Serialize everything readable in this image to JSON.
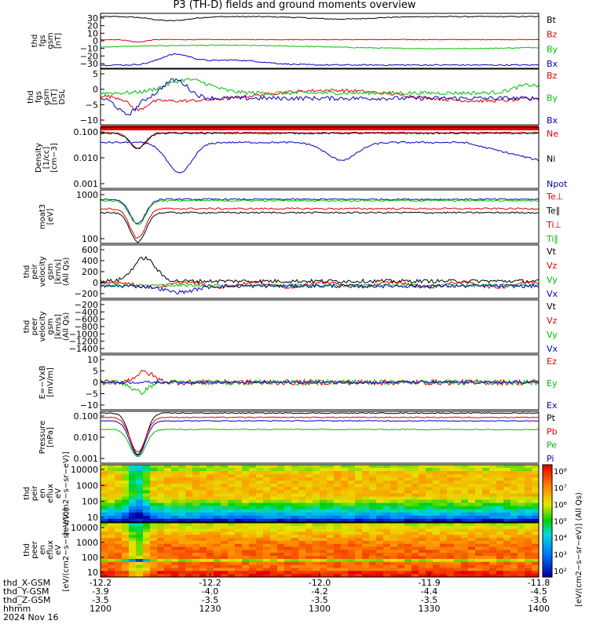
{
  "chart_data": {
    "type": "line",
    "title": "P3 (TH-D) fields and ground moments overview",
    "time_axis": {
      "labels": [
        "-12.2",
        "-12.2",
        "-12.0",
        "-11.9",
        "-11.8"
      ],
      "rows": [
        {
          "name": "thd_X-GSM",
          "values": [
            "-12.2",
            "-12.2",
            "-12.0",
            "-11.9",
            "-11.8"
          ]
        },
        {
          "name": "thd_Y-GSM",
          "values": [
            "-3.9",
            "-4.0",
            "-4.2",
            "-4.4",
            "-4.5"
          ]
        },
        {
          "name": "thd_Z-GSM",
          "values": [
            "-3.5",
            "-3.5",
            "-3.5",
            "-3.5",
            "-3.6"
          ]
        },
        {
          "name": "hhmm",
          "values": [
            "1200",
            "1230",
            "1300",
            "1330",
            "1400"
          ]
        }
      ],
      "date": "2024 Nov 16"
    },
    "panels": [
      {
        "ylabel": [
          "thd",
          "fgs",
          "gsm",
          "[nT]"
        ],
        "ticks": [
          "30",
          "20",
          "10",
          "0",
          "−10",
          "−20",
          "−30"
        ],
        "ylim": [
          -30,
          35
        ],
        "legend": [
          "Bt",
          "Bz",
          "By",
          "Bx"
        ],
        "legend_colors": [
          "#000000",
          "#e00000",
          "#00c000",
          "#0000c0"
        ]
      },
      {
        "ylabel": [
          "thd",
          "fgs",
          "gsm",
          "[nT]",
          "DSL"
        ],
        "ticks": [
          "5",
          "0",
          "−5",
          "−10"
        ],
        "ylim": [
          -12,
          8
        ],
        "legend": [
          "Bz",
          "By",
          "Bx"
        ],
        "legend_colors": [
          "#e00000",
          "#00c000",
          "#0000c0"
        ]
      },
      {
        "ylabel": [
          "Density",
          "[1/cc]",
          "[cm−3]"
        ],
        "ticks": [
          "0.100",
          "0.010",
          "0.001"
        ],
        "log": true,
        "legend": [
          "Ne",
          "Ni",
          "Npot"
        ],
        "legend_colors": [
          "#e00000",
          "#000000",
          "#0000c0"
        ]
      },
      {
        "ylabel": [
          "moat3",
          "[eV]"
        ],
        "ticks": [
          "1000",
          "100"
        ],
        "log": true,
        "legend": [
          "Te⊥",
          "Te∥",
          "Ti⊥",
          "Ti∥"
        ],
        "legend_colors": [
          "#e00000",
          "#000000",
          "#e00000",
          "#00c000"
        ]
      },
      {
        "ylabel": [
          "thd",
          "peir",
          "velocity",
          "gsm",
          "[km/s]",
          "(All Qs)"
        ],
        "ticks": [
          "600",
          "400",
          "200",
          "0",
          "−200"
        ],
        "ylim": [
          -200,
          650
        ],
        "legend": [
          "Vt",
          "Vz",
          "Vy",
          "Vx"
        ],
        "legend_colors": [
          "#000000",
          "#e00000",
          "#00c000",
          "#0000c0"
        ]
      },
      {
        "ylabel": [
          "thd",
          "peer",
          "velocity",
          "gsm",
          "[km/s]",
          "(All Qs)"
        ],
        "ticks": [
          "−200",
          "−400",
          "−600",
          "−800",
          "−1000",
          "−1200",
          "−1400"
        ],
        "ylim": [
          -1400,
          -200
        ],
        "legend": [
          "Vt",
          "Vz",
          "Vy",
          "Vx"
        ],
        "legend_colors": [
          "#000000",
          "#e00000",
          "#00c000",
          "#0000c0"
        ]
      },
      {
        "ylabel": [
          "E=−VxB",
          "[mV/m]"
        ],
        "ticks": [
          "10",
          "5",
          "0",
          "−5",
          "−10"
        ],
        "ylim": [
          -10,
          10
        ],
        "legend": [
          "Ez",
          "Ey",
          "Ex"
        ],
        "legend_colors": [
          "#e00000",
          "#00c000",
          "#0000c0"
        ]
      },
      {
        "ylabel": [
          "Pressure",
          "[nPa]"
        ],
        "ticks": [
          "0.100",
          "0.010",
          "0.001"
        ],
        "log": true,
        "legend": [
          "Pt",
          "Pb",
          "Pe",
          "Pi"
        ],
        "legend_colors": [
          "#000000",
          "#e00000",
          "#00c000",
          "#0000c0"
        ]
      },
      {
        "ylabel": [
          "thd",
          "peir",
          "en",
          "eflux",
          "eV",
          "[eV/(cm2−s−sr−eV)]"
        ],
        "ticks": [
          "10000",
          "1000",
          "100",
          "10"
        ],
        "log": true,
        "type": "heatmap"
      },
      {
        "ylabel": [
          "thd",
          "peer",
          "en",
          "eflux",
          "eV",
          "[eV/(cm2−s−sr−eV)]"
        ],
        "ticks": [
          "10000",
          "1000",
          "100",
          "10"
        ],
        "log": true,
        "type": "heatmap"
      }
    ],
    "colorbar": {
      "ticks": [
        "10⁸",
        "10⁷",
        "10⁶",
        "10⁵",
        "10⁴",
        "10³",
        "10²"
      ],
      "label": "[eV/(cm2−s−sr−eV)] (All Qs)"
    }
  }
}
